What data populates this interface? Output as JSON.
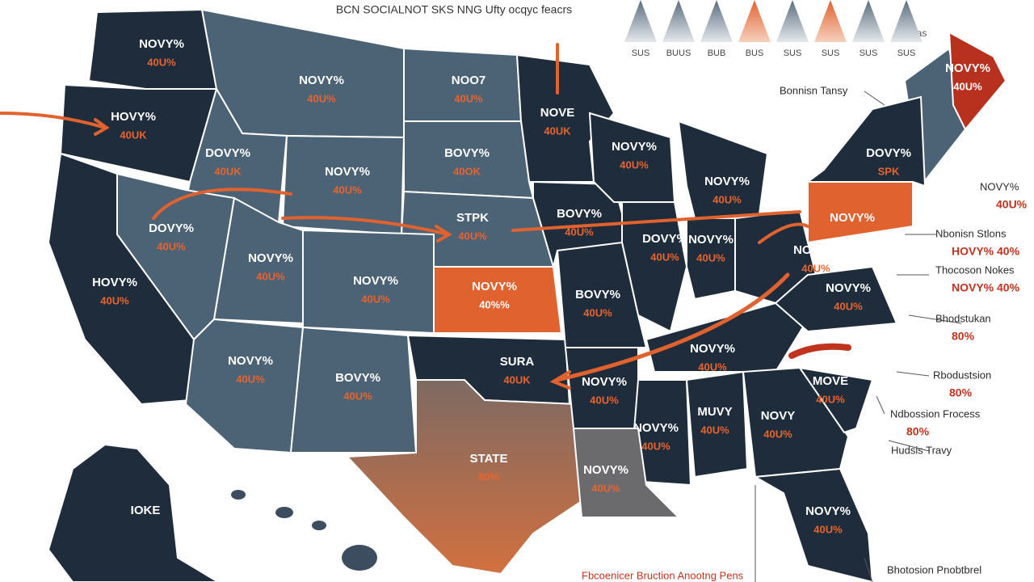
{
  "title": "BCN SOCIALNOT SKS NNG Ufty ocqyc feacrs",
  "chart_labels": [
    "SUS",
    "BUUS",
    "BUB",
    "BUS",
    "SUS",
    "SUS",
    "SUS",
    "SUS"
  ],
  "chart_note": "Glas",
  "regions": [
    {
      "name": "NOVY%",
      "value": "40U%"
    },
    {
      "name": "HOVY%",
      "value": "40UK"
    },
    {
      "name": "NOVY%",
      "value": "40U%"
    },
    {
      "name": "NOO7",
      "value": "40U%"
    },
    {
      "name": "NOVE",
      "value": "40UK"
    },
    {
      "name": "DOVY%",
      "value": "40UK"
    },
    {
      "name": "NOVY%",
      "value": "40U%"
    },
    {
      "name": "BOVY%",
      "value": "40OK"
    },
    {
      "name": "DOVY%",
      "value": "40U%"
    },
    {
      "name": "STPK",
      "value": "40U%"
    },
    {
      "name": "NOVY%",
      "value": "40U%"
    },
    {
      "name": "NOVY%",
      "value": "40U%"
    },
    {
      "name": "NOVY%",
      "value": "40%%"
    },
    {
      "name": "HOVY%",
      "value": "40U%"
    },
    {
      "name": "NOVY%",
      "value": "40U%"
    },
    {
      "name": "BOVY%",
      "value": "40U%"
    },
    {
      "name": "SURA",
      "value": "40UK"
    },
    {
      "name": "STATE",
      "value": "80%"
    },
    {
      "name": "BOVY%",
      "value": "40U%"
    },
    {
      "name": "NOVY%",
      "value": "40U%"
    },
    {
      "name": "NOVY%",
      "value": "40U%"
    },
    {
      "name": "DOVY%",
      "value": "40U%"
    },
    {
      "name": "NOVY%",
      "value": "40U%"
    },
    {
      "name": "BOVY%",
      "value": "40U%"
    },
    {
      "name": "NOVY%",
      "value": "40U%"
    },
    {
      "name": "NOVY%",
      "value": "40U%"
    },
    {
      "name": "NOVY%",
      "value": "40U%"
    },
    {
      "name": "MUVY",
      "value": "40U%"
    },
    {
      "name": "NOVY",
      "value": "40U%"
    },
    {
      "name": "NOVY%",
      "value": "40U%"
    },
    {
      "name": "MOVE",
      "value": "40U%"
    },
    {
      "name": "NOVY%",
      "value": "40U%"
    },
    {
      "name": "NOVY%",
      "value": "40U%"
    },
    {
      "name": "DOVY%",
      "value": "SPK"
    },
    {
      "name": "NOVY%",
      "value": "40U%"
    },
    {
      "name": "NOVY%"
    },
    {
      "name": "NOVY%",
      "value": "40U%"
    },
    {
      "name": "IOKE"
    }
  ],
  "callouts": [
    {
      "label": "Bonnisn Tansy"
    },
    {
      "label": "NOVY%",
      "value": "40U%"
    },
    {
      "label": "Nbonisn Stlons",
      "value": "HOVY% 40%"
    },
    {
      "label": "Thocoson Nokes",
      "value": "NOVY% 40%"
    },
    {
      "label": "Bhodstukan",
      "value": "80%"
    },
    {
      "label": "Rbodustsion",
      "value": "80%"
    },
    {
      "label": "Ndbossion Frocess",
      "value": "80%"
    },
    {
      "label": "Hudsis Travy"
    },
    {
      "label": "Bhotosion Pnobtbrel"
    }
  ],
  "footer": "Fbcoenicer Bruction Anootng Pens"
}
